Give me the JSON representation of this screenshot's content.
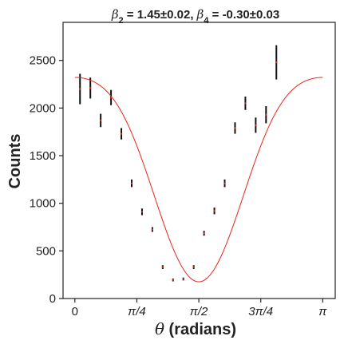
{
  "chart_data": {
    "type": "scatter",
    "title_parts": [
      "β",
      "2",
      " = 1.45±0.02, ",
      "β",
      "4",
      " = -0.30±0.03"
    ],
    "xlabel_symbol": "θ",
    "xlabel_text": " (radians)",
    "ylabel": "Counts",
    "xlim": [
      -0.15,
      3.3
    ],
    "ylim": [
      0,
      2900
    ],
    "x_ticks": [
      {
        "value": 0,
        "label": "0"
      },
      {
        "value": 0.7854,
        "label": "π/4"
      },
      {
        "value": 1.5708,
        "label": "π/2"
      },
      {
        "value": 2.3562,
        "label": "3π/4"
      },
      {
        "value": 3.1416,
        "label": "π"
      }
    ],
    "y_ticks": [
      {
        "value": 0,
        "label": "0"
      },
      {
        "value": 500,
        "label": "500"
      },
      {
        "value": 1000,
        "label": "1000"
      },
      {
        "value": 1500,
        "label": "1500"
      },
      {
        "value": 2000,
        "label": "2000"
      },
      {
        "value": 2500,
        "label": "2500"
      }
    ],
    "grid": false,
    "points": [
      {
        "x": 0.065,
        "y": 2200,
        "err": 160
      },
      {
        "x": 0.196,
        "y": 2210,
        "err": 110
      },
      {
        "x": 0.327,
        "y": 1870,
        "err": 70
      },
      {
        "x": 0.458,
        "y": 2110,
        "err": 80
      },
      {
        "x": 0.589,
        "y": 1730,
        "err": 60
      },
      {
        "x": 0.72,
        "y": 1210,
        "err": 40
      },
      {
        "x": 0.851,
        "y": 910,
        "err": 35
      },
      {
        "x": 0.982,
        "y": 725,
        "err": 25
      },
      {
        "x": 1.113,
        "y": 330,
        "err": 20
      },
      {
        "x": 1.244,
        "y": 195,
        "err": 15
      },
      {
        "x": 1.375,
        "y": 205,
        "err": 15
      },
      {
        "x": 1.506,
        "y": 330,
        "err": 20
      },
      {
        "x": 1.637,
        "y": 685,
        "err": 25
      },
      {
        "x": 1.768,
        "y": 920,
        "err": 35
      },
      {
        "x": 1.899,
        "y": 1210,
        "err": 40
      },
      {
        "x": 2.03,
        "y": 1790,
        "err": 60
      },
      {
        "x": 2.161,
        "y": 2050,
        "err": 70
      },
      {
        "x": 2.292,
        "y": 1820,
        "err": 80
      },
      {
        "x": 2.423,
        "y": 1930,
        "err": 90
      },
      {
        "x": 2.554,
        "y": 2480,
        "err": 180
      }
    ],
    "fit": {
      "A": 1080,
      "beta2": 1.45,
      "beta4": -0.3
    },
    "colors": {
      "fit": "#e8261c",
      "errorbar": "#111111",
      "marker": "#e8261c",
      "axis": "#222222"
    }
  }
}
